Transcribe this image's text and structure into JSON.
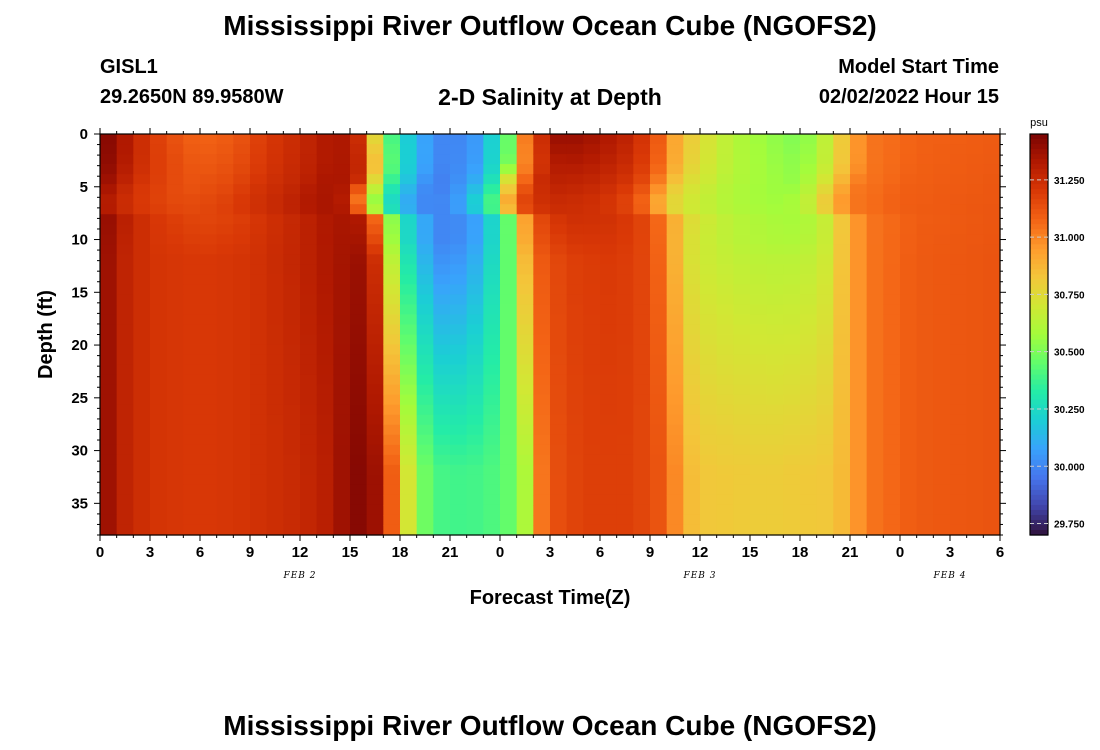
{
  "header": {
    "title": "Mississippi River Outflow Ocean Cube (NGOFS2)",
    "station": "GISL1",
    "coords": "29.2650N  89.9580W",
    "subtitle": "2-D Salinity at Depth",
    "model_start_label": "Model Start Time",
    "model_start_value": "02/02/2022 Hour 15"
  },
  "footer": {
    "title": "Mississippi River Outflow Ocean Cube (NGOFS2)"
  },
  "chart_data": {
    "type": "heatmap",
    "xlabel": "Forecast Time(Z)",
    "ylabel": "Depth (ft)",
    "x_range_hours": [
      0,
      54
    ],
    "y_range_ft": [
      0,
      38
    ],
    "x_tick_labels": [
      "0",
      "3",
      "6",
      "9",
      "12",
      "15",
      "18",
      "21",
      "0",
      "3",
      "6",
      "9",
      "12",
      "15",
      "18",
      "21",
      "0",
      "3",
      "6"
    ],
    "y_tick_labels": [
      "0",
      "5",
      "10",
      "15",
      "20",
      "25",
      "30",
      "35"
    ],
    "y_tick_values": [
      0,
      5,
      10,
      15,
      20,
      25,
      30,
      35
    ],
    "date_labels": [
      {
        "text": "FEB 2",
        "hour": 12
      },
      {
        "text": "FEB 3",
        "hour": 36
      },
      {
        "text": "FEB 4",
        "hour": 51
      }
    ],
    "colorbar": {
      "unit": "psu",
      "min": 29.7,
      "max": 31.45,
      "tick_labels": [
        "31.250",
        "31.000",
        "30.750",
        "30.500",
        "30.250",
        "30.000",
        "29.750"
      ],
      "tick_values": [
        31.25,
        31.0,
        30.75,
        30.5,
        30.25,
        30.0,
        29.75
      ],
      "palette": [
        "#30123b",
        "#4145ab",
        "#4675ed",
        "#39a2fc",
        "#1bcfd4",
        "#24eca6",
        "#61fc6c",
        "#a4fc3b",
        "#d1e834",
        "#f3c63a",
        "#fe9b2d",
        "#f36315",
        "#d93806",
        "#b11901",
        "#7a0403"
      ]
    }
  }
}
